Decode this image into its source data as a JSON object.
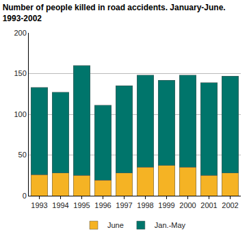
{
  "chart_data": {
    "type": "bar",
    "stacked": true,
    "title": "Number of people killed in road accidents. January-June. 1993-2002",
    "categories": [
      "1993",
      "1994",
      "1995",
      "1996",
      "1997",
      "1998",
      "1999",
      "2000",
      "2001",
      "2002"
    ],
    "series": [
      {
        "name": "June",
        "color": "#f5b324",
        "values": [
          26,
          28,
          25,
          19,
          28,
          35,
          37,
          35,
          25,
          28
        ]
      },
      {
        "name": "Jan.-May",
        "color": "#00756b",
        "values": [
          107,
          99,
          135,
          92,
          107,
          113,
          105,
          113,
          114,
          119
        ]
      }
    ],
    "ylim": [
      0,
      200
    ],
    "yticks": [
      0,
      50,
      100,
      150,
      200
    ],
    "grid": true,
    "legend": "bottom"
  }
}
